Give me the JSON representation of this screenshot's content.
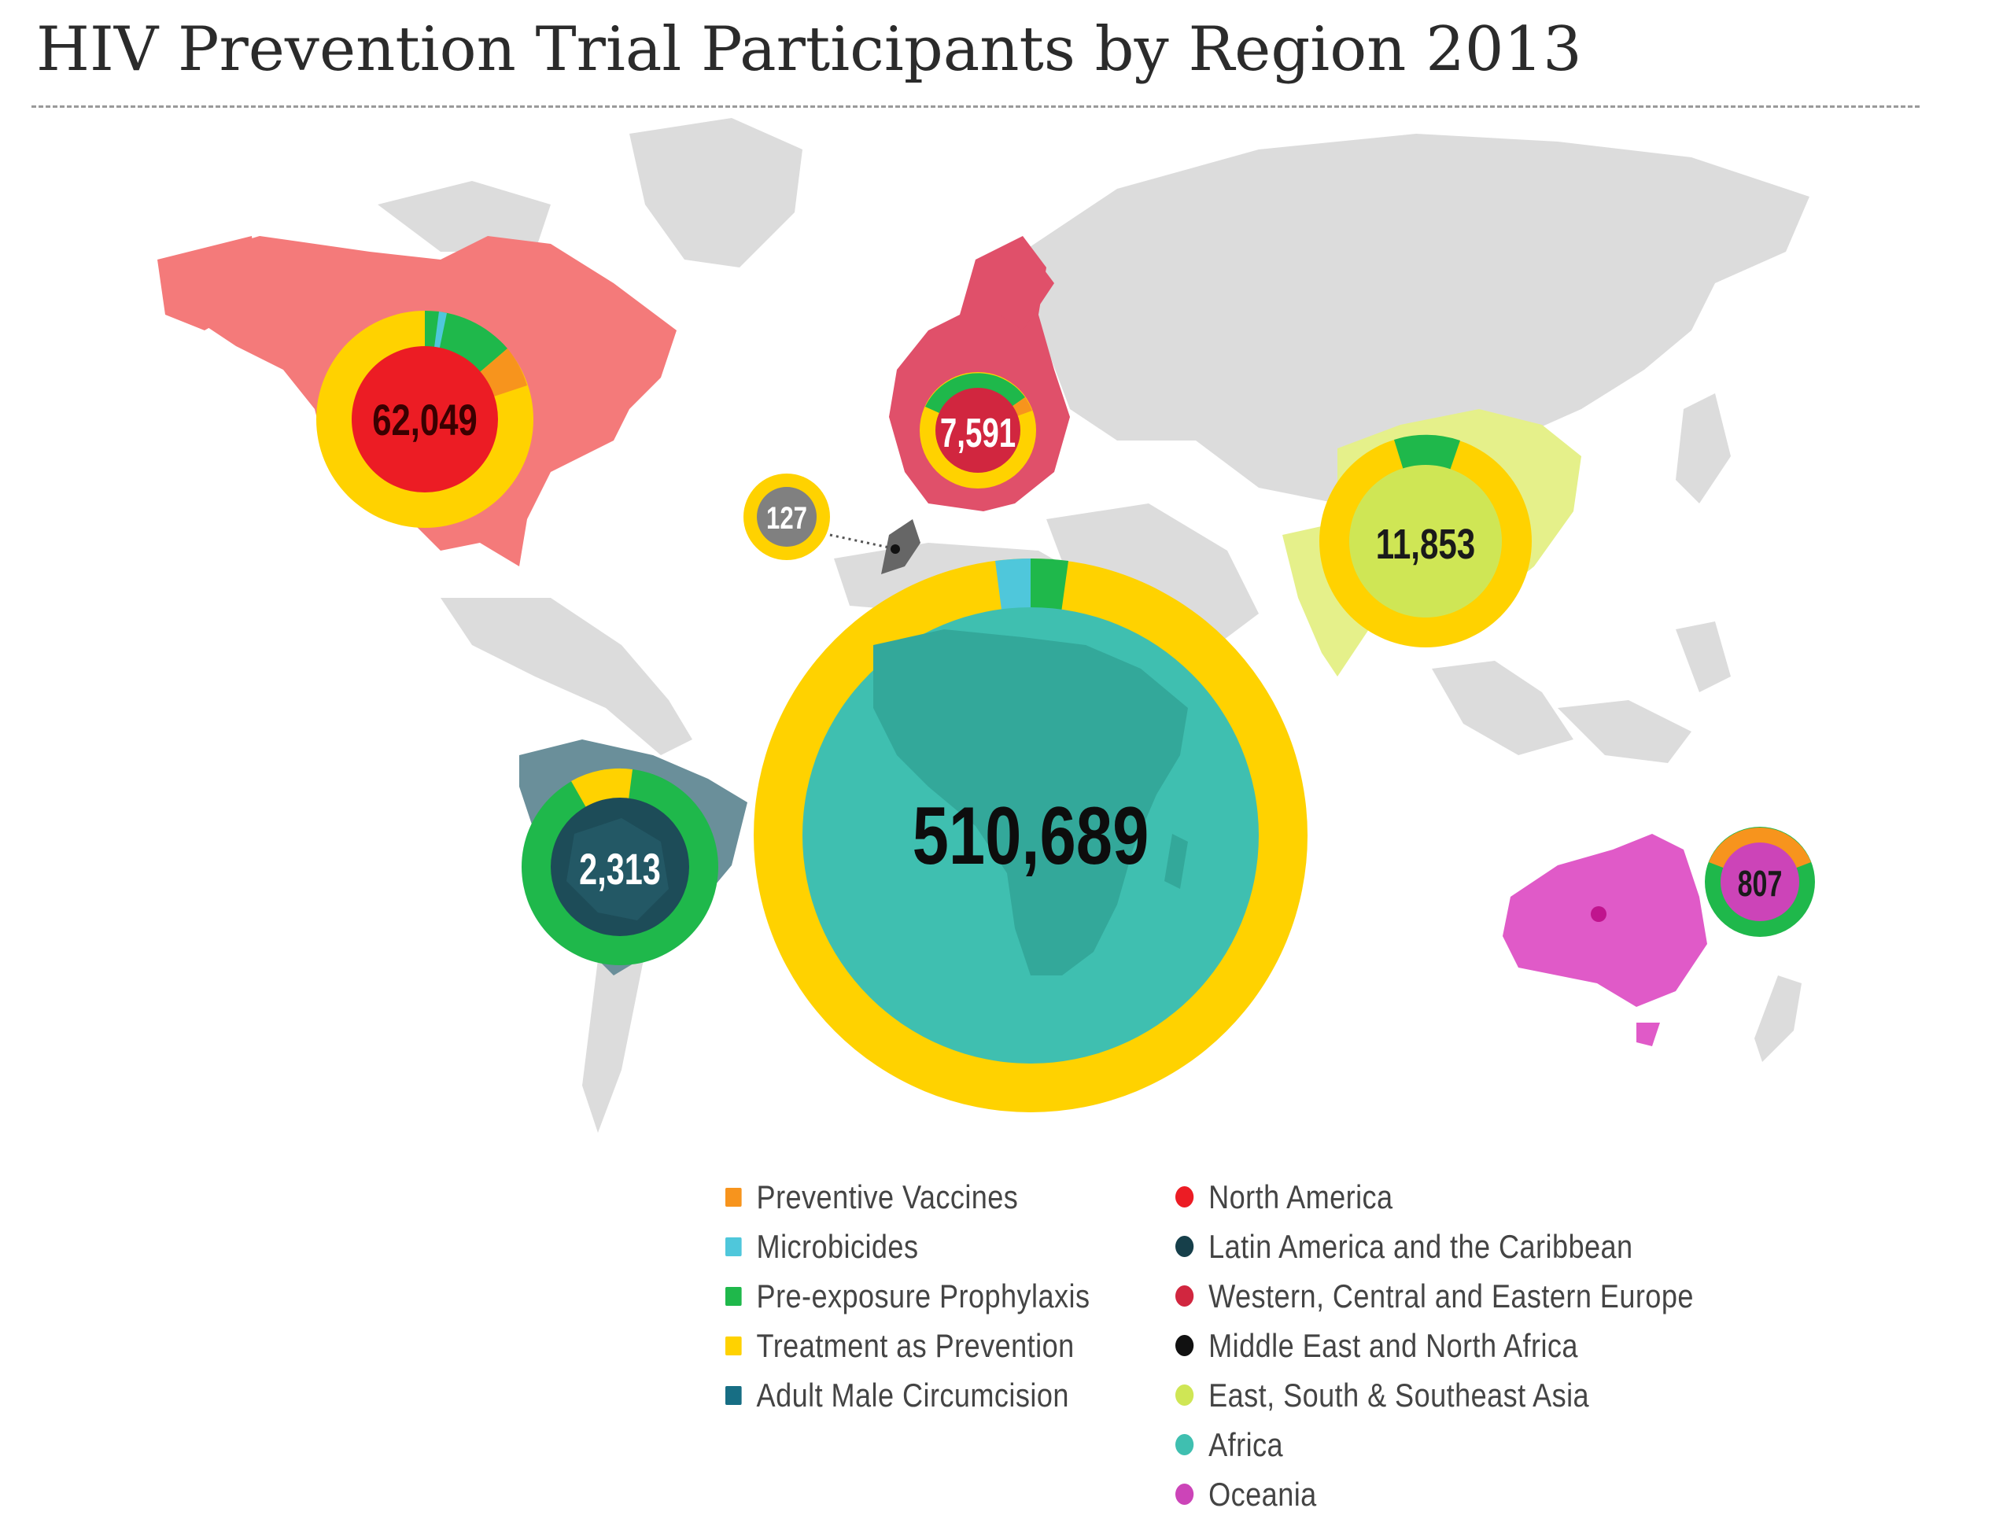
{
  "title": "HIV Prevention Trial Participants by Region 2013",
  "colors": {
    "preventive_vaccines": "#f7941d",
    "microbicides": "#4fc7db",
    "prep": "#1fb84b",
    "treatment_as_prevention": "#ffd200",
    "adult_male_circumcision": "#176e84",
    "north_america": "#ec1c24",
    "latin_america": "#163f4a",
    "europe": "#d1263f",
    "middle_east": "#111111",
    "asia": "#cfe655",
    "africa": "#3fbfb0",
    "oceania": "#cc44b8"
  },
  "regions": [
    {
      "key": "north_america",
      "label": "62,049"
    },
    {
      "key": "europe",
      "label": "7,591"
    },
    {
      "key": "middle_east",
      "label": "127"
    },
    {
      "key": "asia",
      "label": "11,853"
    },
    {
      "key": "latin_america",
      "label": "2,313"
    },
    {
      "key": "africa",
      "label": "510,689"
    },
    {
      "key": "oceania",
      "label": "807"
    }
  ],
  "legend": {
    "programs": [
      {
        "label": "Preventive Vaccines",
        "color": "#f7941d"
      },
      {
        "label": "Microbicides",
        "color": "#4fc7db"
      },
      {
        "label": "Pre-exposure Prophylaxis",
        "color": "#1fb84b"
      },
      {
        "label": "Treatment as Prevention",
        "color": "#ffd200"
      },
      {
        "label": "Adult Male Circumcision",
        "color": "#176e84"
      }
    ],
    "regions": [
      {
        "label": "North America",
        "color": "#ec1c24"
      },
      {
        "label": "Latin America and the Caribbean",
        "color": "#163f4a"
      },
      {
        "label": "Western, Central and Eastern Europe",
        "color": "#d1263f"
      },
      {
        "label": "Middle East and North Africa",
        "color": "#111111"
      },
      {
        "label": "East, South & Southeast Asia",
        "color": "#cfe655"
      },
      {
        "label": "Africa",
        "color": "#3fbfb0"
      },
      {
        "label": "Oceania",
        "color": "#cc44b8"
      }
    ]
  }
}
